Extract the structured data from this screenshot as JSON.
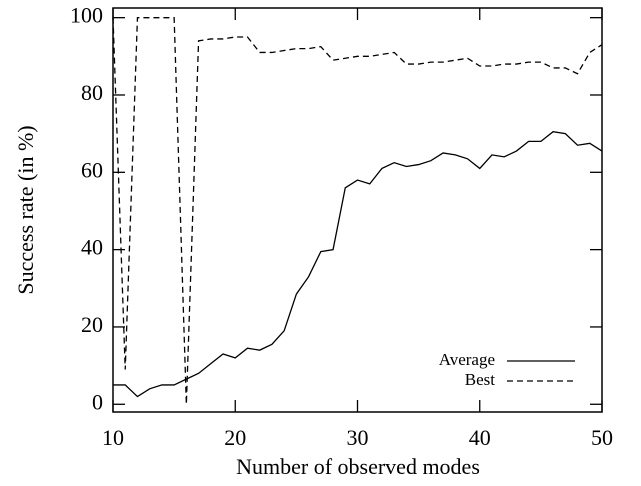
{
  "chart_data": {
    "type": "line",
    "x_label": "Number of observed modes",
    "y_label": "Success rate (in %)",
    "x": [
      10,
      11,
      12,
      13,
      14,
      15,
      16,
      17,
      18,
      19,
      20,
      21,
      22,
      23,
      24,
      25,
      26,
      27,
      28,
      29,
      30,
      31,
      32,
      33,
      34,
      35,
      36,
      37,
      38,
      39,
      40,
      41,
      42,
      43,
      44,
      45,
      46,
      47,
      48,
      49,
      50
    ],
    "series": [
      {
        "name": "Average",
        "color": "#000000",
        "linestyle": "solid",
        "values": [
          5,
          5,
          2,
          4,
          5,
          5,
          6.5,
          8,
          10.5,
          13,
          12,
          14.5,
          14,
          15.5,
          19,
          28.5,
          33,
          39.5,
          40,
          56,
          58,
          57,
          61,
          62.5,
          61.5,
          62,
          63,
          65,
          64.5,
          63.5,
          61,
          64.5,
          64,
          65.5,
          68,
          68,
          70.5,
          70,
          67,
          67.5,
          65.5
        ]
      },
      {
        "name": "Best",
        "color": "#000000",
        "linestyle": "dashed",
        "values": [
          100,
          9,
          100,
          100,
          100,
          100,
          0,
          94,
          94.5,
          94.5,
          95,
          95,
          91,
          91,
          91.5,
          92,
          92,
          92.5,
          89,
          89.5,
          90,
          90,
          90.5,
          91,
          88,
          88,
          88.5,
          88.5,
          89,
          89.5,
          87.5,
          87.5,
          88,
          88,
          88.5,
          88.5,
          87,
          87,
          85.5,
          91,
          93
        ]
      }
    ],
    "xlim": [
      10,
      50
    ],
    "xticks": [
      10,
      20,
      30,
      40,
      50
    ],
    "ylim": [
      -2,
      102.5
    ],
    "yticks": [
      0,
      20,
      40,
      60,
      80,
      100
    ],
    "legend": "lower right"
  }
}
